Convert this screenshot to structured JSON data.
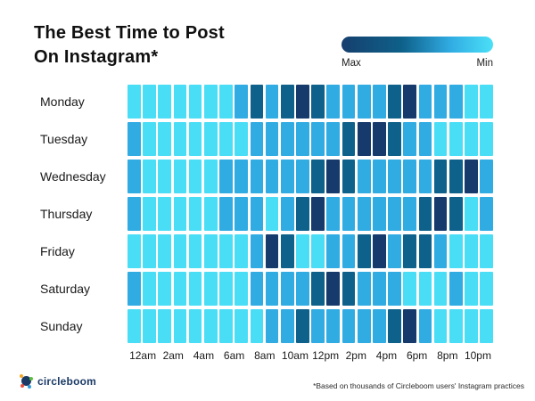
{
  "title": {
    "line1": "The Best Time to Post",
    "line2": "On Instagram*"
  },
  "legend": {
    "max_label": "Max",
    "min_label": "Min"
  },
  "footer": {
    "logo_text": "circleboom",
    "footnote": "*Based on thousands of Circleboom users' Instagram practices"
  },
  "colors": {
    "cell_min": "#4ADEF6",
    "cell_low": "#31ACE3",
    "cell_high": "#0E618A",
    "cell_max": "#163A6B",
    "legend_gradient_start": "#163F6E",
    "legend_gradient_end": "#4BE0F7",
    "logo_navy": "#1B3A66"
  },
  "chart_data": {
    "type": "heatmap",
    "title": "The Best Time to Post On Instagram*",
    "rows": [
      "Monday",
      "Tuesday",
      "Wednesday",
      "Thursday",
      "Friday",
      "Saturday",
      "Sunday"
    ],
    "n_columns": 24,
    "x_tick_labels": [
      "12am",
      "2am",
      "4am",
      "6am",
      "8am",
      "10am",
      "12pm",
      "2pm",
      "4pm",
      "6pm",
      "8pm",
      "10pm"
    ],
    "columns_per_tick": 2,
    "legend": {
      "left": "Max",
      "right": "Min"
    },
    "scale": {
      "0": "min engagement (lightest)",
      "1": "low-medium",
      "2": "high",
      "3": "max engagement (darkest)"
    },
    "level_colors": [
      "#4ADEF6",
      "#31ACE3",
      "#0E618A",
      "#163A6B"
    ],
    "values": [
      [
        0,
        0,
        0,
        0,
        0,
        0,
        0,
        1,
        2,
        1,
        2,
        3,
        2,
        1,
        1,
        1,
        1,
        2,
        3,
        1,
        1,
        1,
        0,
        0
      ],
      [
        1,
        0,
        0,
        0,
        0,
        0,
        0,
        0,
        1,
        1,
        1,
        1,
        1,
        1,
        2,
        3,
        3,
        2,
        1,
        1,
        0,
        0,
        0,
        0
      ],
      [
        1,
        0,
        0,
        0,
        0,
        0,
        1,
        1,
        1,
        1,
        1,
        1,
        2,
        3,
        2,
        1,
        1,
        1,
        1,
        1,
        2,
        2,
        3,
        1
      ],
      [
        1,
        0,
        0,
        0,
        0,
        0,
        1,
        1,
        1,
        0,
        1,
        2,
        3,
        1,
        1,
        1,
        1,
        1,
        1,
        2,
        3,
        2,
        0,
        1
      ],
      [
        0,
        0,
        0,
        0,
        0,
        0,
        0,
        0,
        1,
        3,
        2,
        0,
        0,
        1,
        1,
        2,
        3,
        1,
        2,
        2,
        1,
        0,
        0,
        0
      ],
      [
        1,
        0,
        0,
        0,
        0,
        0,
        0,
        0,
        1,
        1,
        1,
        1,
        2,
        3,
        2,
        1,
        1,
        1,
        0,
        0,
        0,
        1,
        0,
        0
      ],
      [
        0,
        0,
        0,
        0,
        0,
        0,
        0,
        0,
        0,
        1,
        1,
        2,
        1,
        1,
        1,
        1,
        1,
        2,
        3,
        1,
        0,
        0,
        0,
        0
      ]
    ]
  }
}
